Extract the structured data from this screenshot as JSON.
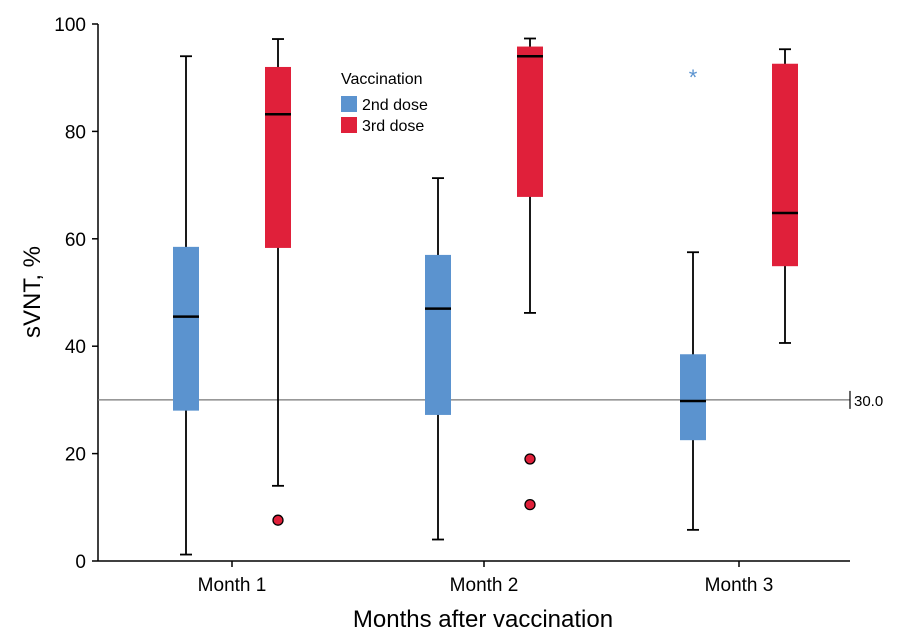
{
  "chart_data": {
    "type": "box",
    "xlabel": "Months after vaccination",
    "ylabel": "sVNT, %",
    "ylim": [
      0,
      100
    ],
    "yticks": [
      0,
      20,
      40,
      60,
      80,
      100
    ],
    "categories": [
      "Month 1",
      "Month 2",
      "Month 3"
    ],
    "legend": {
      "title": "Vaccination",
      "position": "top-center"
    },
    "reference_line": {
      "value": 30.0,
      "label": "30.0"
    },
    "series": [
      {
        "name": "2nd dose",
        "color": "#5b93cf",
        "boxes": [
          {
            "category": "Month 1",
            "min": 1.2,
            "q1": 28.0,
            "median": 45.5,
            "q3": 58.5,
            "max": 94.0,
            "outliers": [],
            "extremes": []
          },
          {
            "category": "Month 2",
            "min": 4.0,
            "q1": 27.2,
            "median": 47.0,
            "q3": 57.0,
            "max": 71.3,
            "outliers": [],
            "extremes": []
          },
          {
            "category": "Month 3",
            "min": 5.8,
            "q1": 22.5,
            "median": 29.8,
            "q3": 38.5,
            "max": 57.5,
            "outliers": [],
            "extremes": [
              90.5
            ]
          }
        ]
      },
      {
        "name": "3rd dose",
        "color": "#e0203a",
        "boxes": [
          {
            "category": "Month 1",
            "min": 14.0,
            "q1": 58.3,
            "median": 83.2,
            "q3": 92.0,
            "max": 97.2,
            "outliers": [
              7.6
            ],
            "extremes": []
          },
          {
            "category": "Month 2",
            "min": 46.2,
            "q1": 67.8,
            "median": 94.0,
            "q3": 95.8,
            "max": 97.3,
            "outliers": [
              19.0,
              10.5
            ],
            "extremes": []
          },
          {
            "category": "Month 3",
            "min": 40.6,
            "q1": 54.9,
            "median": 64.8,
            "q3": 92.6,
            "max": 95.3,
            "outliers": [],
            "extremes": []
          }
        ]
      }
    ]
  }
}
